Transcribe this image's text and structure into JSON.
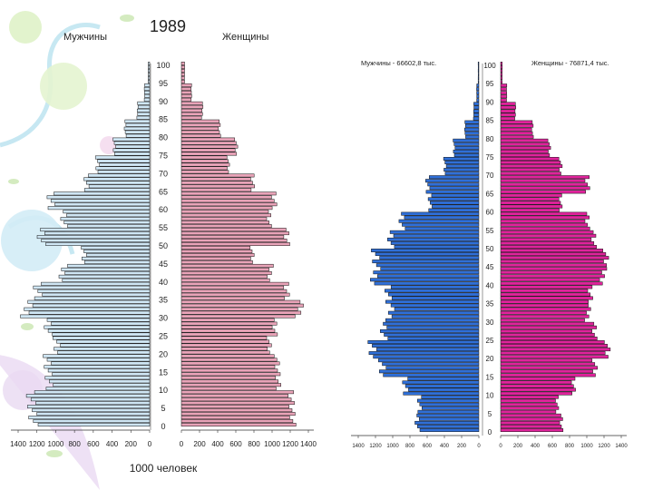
{
  "chart_data": [
    {
      "type": "bar",
      "orientation": "horizontal",
      "title": "1989",
      "xlabel": "1000 человек",
      "left_label": "Мужчины",
      "right_label": "Женщины",
      "age_ticks": [
        "0",
        "5",
        "10",
        "15",
        "20",
        "25",
        "30",
        "35",
        "40",
        "45",
        "50",
        "55",
        "60",
        "65",
        "70",
        "75",
        "80",
        "85",
        "90",
        "95",
        "100"
      ],
      "x_ticks_left": [
        "1400",
        "1200",
        "1000",
        "800",
        "600",
        "400",
        "200",
        "0"
      ],
      "x_ticks_right": [
        "0",
        "200",
        "400",
        "600",
        "800",
        "1000",
        "1200",
        "1400"
      ],
      "xlim": [
        0,
        1400
      ],
      "colors": {
        "male": "#cfe6f4",
        "female": "#e9a3b8",
        "edge": "#111111"
      },
      "ages": [
        [
          0,
          10,
          1250,
          1220
        ],
        [
          10,
          20,
          1080,
          1060
        ],
        [
          20,
          25,
          1000,
          960
        ],
        [
          25,
          30,
          1080,
          1030
        ],
        [
          30,
          35,
          1310,
          1300
        ],
        [
          35,
          40,
          1190,
          1160
        ],
        [
          40,
          45,
          920,
          980
        ],
        [
          45,
          50,
          700,
          780
        ],
        [
          50,
          55,
          1140,
          1170
        ],
        [
          55,
          60,
          920,
          960
        ],
        [
          60,
          65,
          1040,
          1030
        ],
        [
          65,
          70,
          680,
          780
        ],
        [
          70,
          75,
          550,
          520
        ],
        [
          75,
          80,
          380,
          600
        ],
        [
          80,
          85,
          260,
          420
        ],
        [
          85,
          90,
          130,
          230
        ],
        [
          90,
          95,
          55,
          110
        ],
        [
          95,
          101,
          15,
          35
        ]
      ]
    },
    {
      "type": "bar",
      "orientation": "horizontal",
      "left_label": "Мужчины - 66602,8 тыс.",
      "right_label": "Женщины - 76871,4 тыс.",
      "age_ticks": [
        "0",
        "5",
        "10",
        "15",
        "20",
        "25",
        "30",
        "35",
        "40",
        "45",
        "50",
        "55",
        "60",
        "65",
        "70",
        "75",
        "80",
        "85",
        "90",
        "95",
        "100"
      ],
      "x_ticks_left": [
        "1400",
        "1200",
        "1000",
        "800",
        "600",
        "400",
        "200",
        "0"
      ],
      "x_ticks_right": [
        "0",
        "200",
        "400",
        "600",
        "800",
        "1000",
        "1200",
        "1400"
      ],
      "xlim": [
        0,
        1400
      ],
      "colors": {
        "male": "#2f6fd8",
        "female": "#e0239c",
        "edge": "#111111"
      },
      "ages": [
        [
          0,
          5,
          720,
          700
        ],
        [
          5,
          10,
          680,
          660
        ],
        [
          10,
          15,
          860,
          840
        ],
        [
          15,
          20,
          1110,
          1100
        ],
        [
          20,
          25,
          1250,
          1230
        ],
        [
          25,
          30,
          1100,
          1090
        ],
        [
          30,
          35,
          1030,
          1010
        ],
        [
          35,
          40,
          1050,
          1040
        ],
        [
          40,
          45,
          1200,
          1190
        ],
        [
          45,
          50,
          1200,
          1220
        ],
        [
          50,
          55,
          1010,
          1090
        ],
        [
          55,
          60,
          900,
          1000
        ],
        [
          60,
          65,
          560,
          700
        ],
        [
          65,
          70,
          600,
          1000
        ],
        [
          70,
          75,
          390,
          700
        ],
        [
          75,
          80,
          290,
          560
        ],
        [
          80,
          85,
          160,
          370
        ],
        [
          85,
          90,
          60,
          170
        ],
        [
          90,
          95,
          25,
          70
        ],
        [
          95,
          101,
          8,
          18
        ]
      ]
    }
  ]
}
